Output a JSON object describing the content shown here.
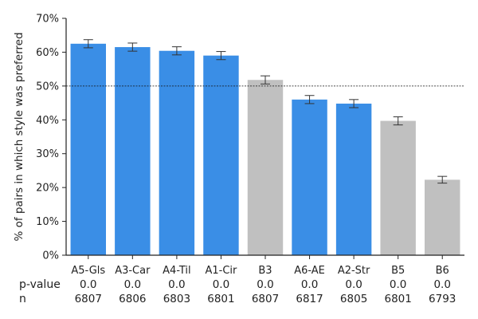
{
  "chart_data": {
    "type": "bar",
    "ylabel": "% of pairs in which style was preferred",
    "ylim": [
      0,
      70
    ],
    "yticks": [
      0,
      10,
      20,
      30,
      40,
      50,
      60,
      70
    ],
    "ytick_labels": [
      "0%",
      "10%",
      "20%",
      "30%",
      "40%",
      "50%",
      "60%",
      "70%"
    ],
    "reference_line": 50,
    "categories": [
      "A5-Gls",
      "A3-Car",
      "A4-Til",
      "A1-Cir",
      "B3",
      "A6-AE",
      "A2-Str",
      "B5",
      "B6"
    ],
    "values": [
      62.5,
      61.5,
      60.4,
      59.0,
      51.8,
      46.0,
      44.8,
      39.7,
      22.3
    ],
    "errors": [
      1.2,
      1.2,
      1.2,
      1.2,
      1.2,
      1.2,
      1.2,
      1.2,
      1.0
    ],
    "highlight": [
      true,
      true,
      true,
      true,
      false,
      true,
      true,
      false,
      false
    ],
    "colors": {
      "highlight": "#3a8ee6",
      "muted": "#c0c0c0",
      "axis": "#222222",
      "error": "#333333"
    },
    "grid": false,
    "table": {
      "row_labels": [
        "p-value",
        "n"
      ],
      "p_values": [
        "0.0",
        "0.0",
        "0.0",
        "0.0",
        "0.0",
        "0.0",
        "0.0",
        "0.0",
        "0.0"
      ],
      "n": [
        "6807",
        "6806",
        "6803",
        "6801",
        "6807",
        "6817",
        "6805",
        "6801",
        "6793"
      ]
    }
  }
}
